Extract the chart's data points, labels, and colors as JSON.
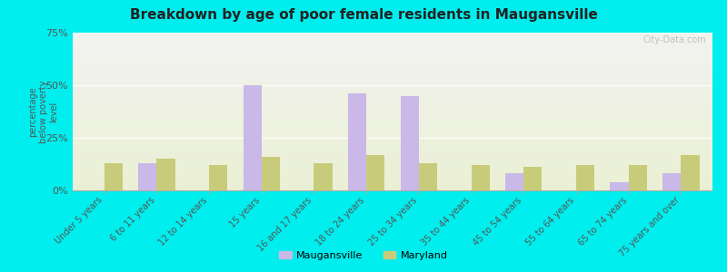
{
  "title": "Breakdown by age of poor female residents in Maugansville",
  "categories": [
    "Under 5 years",
    "6 to 11 years",
    "12 to 14 years",
    "15 years",
    "16 and 17 years",
    "18 to 24 years",
    "25 to 34 years",
    "35 to 44 years",
    "45 to 54 years",
    "55 to 64 years",
    "65 to 74 years",
    "75 years and over"
  ],
  "maugansville": [
    0,
    13,
    0,
    50,
    0,
    46,
    45,
    0,
    8,
    0,
    4,
    8
  ],
  "maryland": [
    13,
    15,
    12,
    16,
    13,
    17,
    13,
    12,
    11,
    12,
    12,
    17
  ],
  "maugansville_color": "#c9b8e8",
  "maryland_color": "#c8cc7a",
  "outer_bg": "#00eeee",
  "ylabel": "percentage\nbelow poverty\nlevel",
  "ylim": [
    0,
    75
  ],
  "yticks": [
    0,
    25,
    50,
    75
  ],
  "ytick_labels": [
    "0%",
    "25%",
    "50%",
    "75%"
  ],
  "bar_width": 0.35,
  "watermark": "City-Data.com",
  "legend_labels": [
    "Maugansville",
    "Maryland"
  ]
}
